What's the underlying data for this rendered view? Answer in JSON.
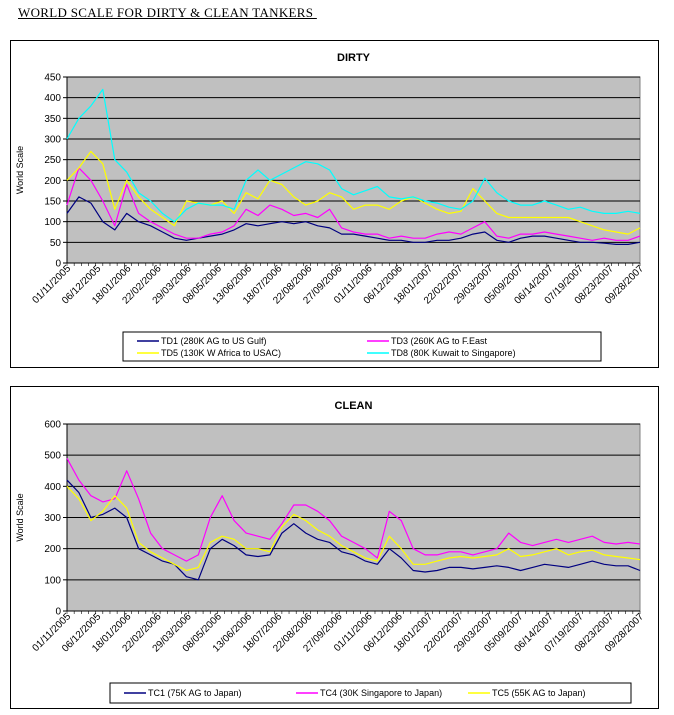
{
  "page": {
    "title": "WORLD SCALE FOR DIRTY & CLEAN TANKERS "
  },
  "chart_data": [
    {
      "type": "line",
      "title": "DIRTY",
      "ylabel": "World Scale",
      "xlabel": "",
      "ylim": [
        0,
        450
      ],
      "yticks": [
        0,
        50,
        100,
        150,
        200,
        250,
        300,
        350,
        400,
        450
      ],
      "grid": true,
      "legend_position": "bottom",
      "x_tick_labels": [
        "01/11/2005",
        "06/12/2005",
        "18/01/2006",
        "22/02/2006",
        "29/03/2006",
        "08/05/2006",
        "13/06/2006",
        "18/07/2006",
        "22/08/2006",
        "27/09/2006",
        "01/11/2006",
        "06/12/2006",
        "18/01/2007",
        "22/02/2007",
        "29/03/2007",
        "05/09/2007",
        "06/14/2007",
        "07/19/2007",
        "08/23/2007",
        "09/28/2007"
      ],
      "series": [
        {
          "name": "TD1 (280K AG to US Gulf)",
          "color": "#000080",
          "values": [
            120,
            160,
            145,
            100,
            80,
            120,
            100,
            90,
            75,
            60,
            55,
            60,
            65,
            70,
            80,
            95,
            90,
            95,
            100,
            95,
            100,
            90,
            85,
            70,
            70,
            65,
            60,
            55,
            55,
            50,
            50,
            55,
            55,
            60,
            70,
            75,
            55,
            50,
            60,
            65,
            65,
            60,
            55,
            50,
            50,
            48,
            45,
            45,
            50
          ]
        },
        {
          "name": "TD3 (260K AG to F.East",
          "color": "#ff00ff",
          "values": [
            140,
            230,
            200,
            150,
            90,
            190,
            120,
            100,
            85,
            70,
            60,
            60,
            70,
            75,
            90,
            130,
            115,
            140,
            130,
            115,
            120,
            110,
            130,
            85,
            75,
            70,
            70,
            60,
            65,
            60,
            60,
            70,
            75,
            70,
            85,
            100,
            65,
            60,
            70,
            70,
            75,
            70,
            65,
            60,
            55,
            60,
            55,
            55,
            65
          ]
        },
        {
          "name": "TD5 (130K W Africa to USAC)",
          "color": "#ffff00",
          "values": [
            200,
            230,
            270,
            240,
            130,
            200,
            160,
            130,
            110,
            90,
            150,
            145,
            140,
            150,
            120,
            170,
            155,
            200,
            190,
            160,
            140,
            150,
            170,
            160,
            130,
            140,
            140,
            130,
            150,
            160,
            145,
            130,
            120,
            125,
            180,
            150,
            120,
            110,
            110,
            110,
            110,
            110,
            110,
            100,
            90,
            80,
            75,
            70,
            85
          ]
        },
        {
          "name": "TD8 (80K Kuwait to Singapore)",
          "color": "#00ffff",
          "values": [
            300,
            350,
            380,
            420,
            250,
            220,
            170,
            150,
            120,
            100,
            130,
            145,
            140,
            140,
            130,
            200,
            225,
            200,
            215,
            230,
            245,
            240,
            225,
            180,
            165,
            175,
            185,
            160,
            155,
            160,
            150,
            145,
            135,
            130,
            150,
            205,
            170,
            150,
            140,
            140,
            150,
            140,
            130,
            135,
            125,
            120,
            120,
            125,
            120
          ]
        }
      ]
    },
    {
      "type": "line",
      "title": "CLEAN",
      "ylabel": "World Scale",
      "xlabel": "",
      "ylim": [
        0,
        600
      ],
      "yticks": [
        0,
        100,
        200,
        300,
        400,
        500,
        600
      ],
      "grid": true,
      "legend_position": "bottom",
      "x_tick_labels": [
        "01/11/2005",
        "06/12/2005",
        "18/01/2006",
        "22/02/2006",
        "29/03/2006",
        "08/05/2006",
        "13/06/2006",
        "18/07/2006",
        "22/08/2006",
        "27/09/2006",
        "01/11/2006",
        "06/12/2006",
        "18/01/2007",
        "22/02/2007",
        "29/03/2007",
        "05/09/2007",
        "06/14/2007",
        "07/19/2007",
        "08/23/2007",
        "09/28/2007"
      ],
      "series": [
        {
          "name": "TC1 (75K AG to Japan)",
          "color": "#000080",
          "values": [
            420,
            380,
            300,
            310,
            330,
            300,
            200,
            180,
            160,
            150,
            110,
            100,
            200,
            230,
            210,
            180,
            175,
            180,
            250,
            280,
            250,
            230,
            220,
            190,
            180,
            160,
            150,
            200,
            170,
            130,
            125,
            130,
            140,
            140,
            135,
            140,
            145,
            140,
            130,
            140,
            150,
            145,
            140,
            150,
            160,
            150,
            145,
            145,
            130
          ]
        },
        {
          "name": "TC4 (30K Singapore to Japan)",
          "color": "#ff00ff",
          "values": [
            490,
            420,
            370,
            350,
            360,
            450,
            360,
            250,
            200,
            180,
            160,
            180,
            300,
            370,
            290,
            250,
            240,
            230,
            280,
            340,
            340,
            320,
            290,
            240,
            220,
            200,
            170,
            320,
            290,
            200,
            180,
            180,
            190,
            190,
            180,
            190,
            200,
            250,
            220,
            210,
            220,
            230,
            220,
            230,
            240,
            220,
            215,
            220,
            215
          ]
        },
        {
          "name": "TC5 (55K AG to Japan)",
          "color": "#ffff00",
          "values": [
            400,
            360,
            290,
            320,
            370,
            330,
            220,
            190,
            170,
            150,
            130,
            140,
            220,
            240,
            230,
            200,
            200,
            190,
            270,
            310,
            290,
            260,
            240,
            210,
            190,
            170,
            160,
            240,
            200,
            150,
            150,
            160,
            170,
            175,
            170,
            175,
            180,
            200,
            175,
            180,
            190,
            200,
            180,
            190,
            195,
            180,
            175,
            170,
            165
          ]
        }
      ]
    }
  ]
}
